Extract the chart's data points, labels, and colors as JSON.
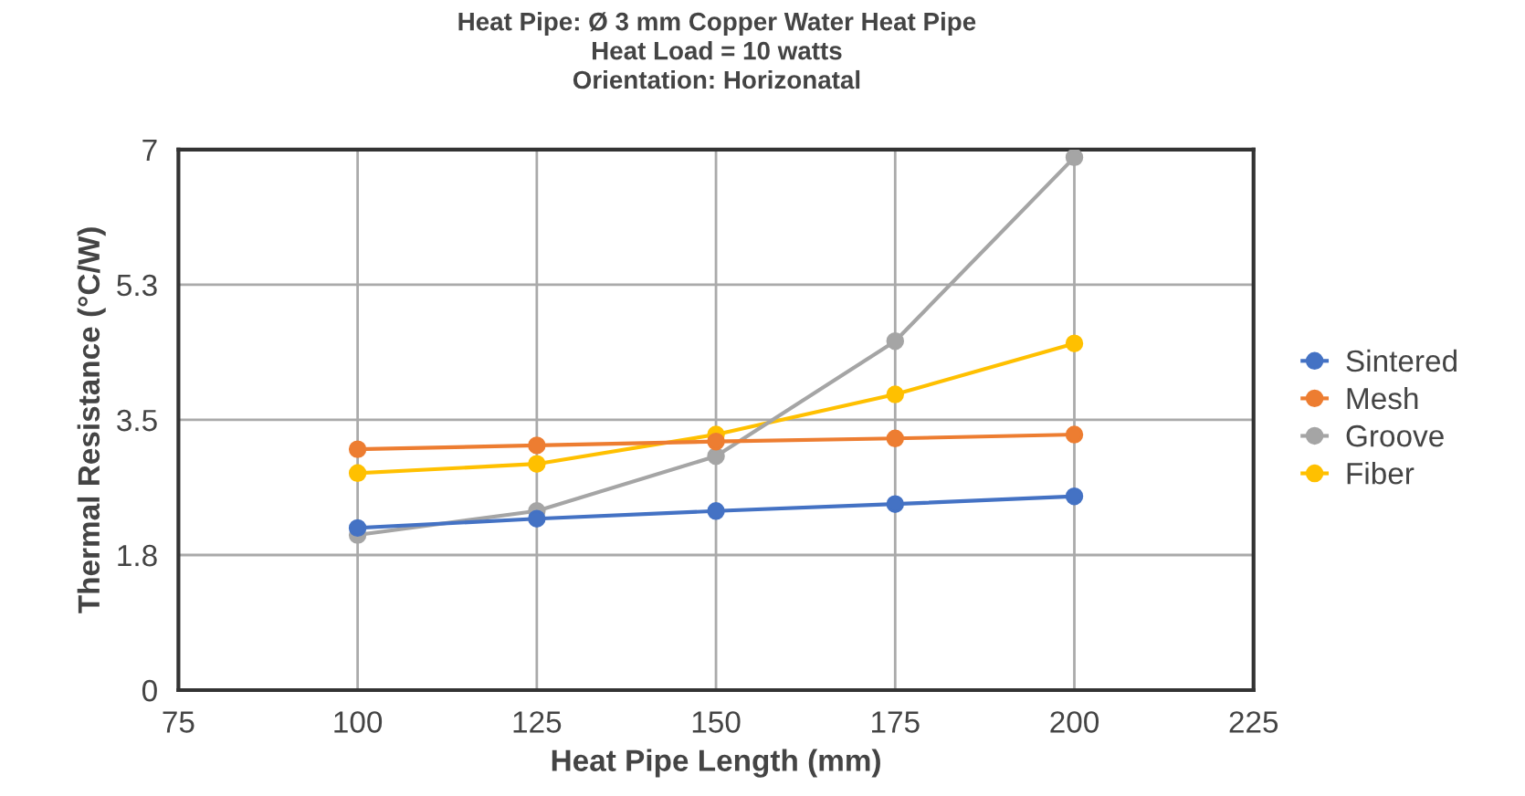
{
  "chart_data": {
    "type": "line",
    "title": "Heat Pipe: Ø 3 mm Copper Water Heat Pipe\nHeat Load = 10 watts\nOrientation: Horizonatal",
    "xlabel": "Heat Pipe Length (mm)",
    "ylabel": "Thermal Resistance (°C/W)",
    "x": [
      100,
      125,
      150,
      175,
      200
    ],
    "series": [
      {
        "name": "Sintered",
        "color": "#4472c4",
        "values": [
          2.1,
          2.22,
          2.32,
          2.41,
          2.51
        ]
      },
      {
        "name": "Mesh",
        "color": "#ed7d31",
        "values": [
          3.12,
          3.17,
          3.22,
          3.26,
          3.31
        ]
      },
      {
        "name": "Groove",
        "color": "#a5a5a5",
        "values": [
          2.01,
          2.32,
          3.03,
          4.52,
          6.9
        ]
      },
      {
        "name": "Fiber",
        "color": "#ffc000",
        "values": [
          2.81,
          2.93,
          3.31,
          3.83,
          4.49
        ]
      }
    ],
    "xlim": [
      75,
      225
    ],
    "xticks": [
      75,
      100,
      125,
      150,
      175,
      200,
      225
    ],
    "ylim": [
      0,
      7
    ],
    "yticks": [
      0,
      {
        "value": 1.75,
        "label": "1.8"
      },
      3.5,
      {
        "value": 5.25,
        "label": "5.3"
      },
      7
    ],
    "grid": true,
    "legend": "right",
    "marker": "circle",
    "line_style": "solid"
  }
}
